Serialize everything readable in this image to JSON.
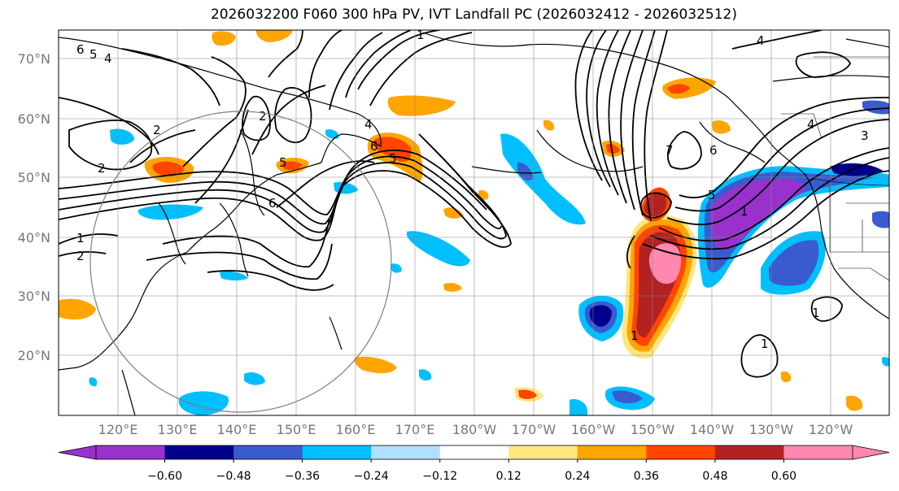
{
  "title": "2026032200 F060 300 hPa PV, IVT Landfall PC (2026032412 - 2026032512)",
  "lat_labels": [
    "70°N",
    "60°N",
    "50°N",
    "40°N",
    "30°N",
    "20°N"
  ],
  "lon_labels": [
    "120°E",
    "130°E",
    "140°E",
    "150°E",
    "160°E",
    "170°E",
    "180°W",
    "170°W",
    "160°W",
    "150°W",
    "140°W",
    "130°W",
    "120°W"
  ],
  "colorbar": {
    "ticks": [
      "−0.60",
      "−0.48",
      "−0.36",
      "−0.24",
      "−0.12",
      "0.12",
      "0.24",
      "0.36",
      "0.48",
      "0.60"
    ],
    "colors": [
      "#9932cc",
      "#00008b",
      "#3a5bd0",
      "#00bfff",
      "#b0e0ff",
      "#ffffff",
      "#ffe680",
      "#ffa500",
      "#ff4500",
      "#b22222",
      "#ff88b0"
    ]
  },
  "contour_labels": [
    "1",
    "2",
    "3",
    "4",
    "5",
    "6",
    "7"
  ]
}
